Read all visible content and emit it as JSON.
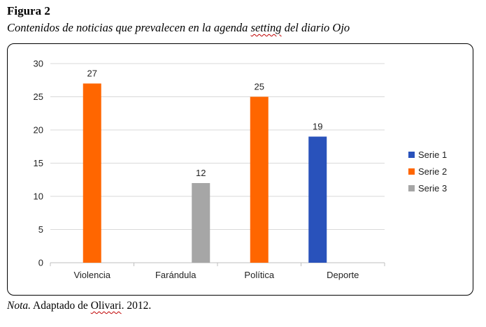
{
  "figure": {
    "label": "Figura 2",
    "title_pre": "Contenidos de noticias que prevalecen en la agenda ",
    "title_mid": "setting",
    "title_post": " del diario Ojo"
  },
  "note": {
    "label": "Nota.",
    "text_pre": " Adaptado  de  ",
    "author": "Olivari",
    "text_post": ".  2012."
  },
  "chart_data": {
    "type": "bar",
    "categories": [
      "Violencia",
      "Farándula",
      "Política",
      "Deporte"
    ],
    "series": [
      {
        "name": "Serie 1",
        "color": "#2952bb",
        "values": [
          null,
          null,
          null,
          19
        ]
      },
      {
        "name": "Serie 2",
        "color": "#ff6600",
        "values": [
          27,
          null,
          25,
          null
        ]
      },
      {
        "name": "Serie 3",
        "color": "#a6a6a6",
        "values": [
          null,
          12,
          null,
          null
        ]
      }
    ],
    "ylim": [
      0,
      30
    ],
    "yticks": [
      0,
      5,
      10,
      15,
      20,
      25,
      30
    ],
    "grid": true,
    "legend_position": "right",
    "xlabel": "",
    "ylabel": ""
  }
}
